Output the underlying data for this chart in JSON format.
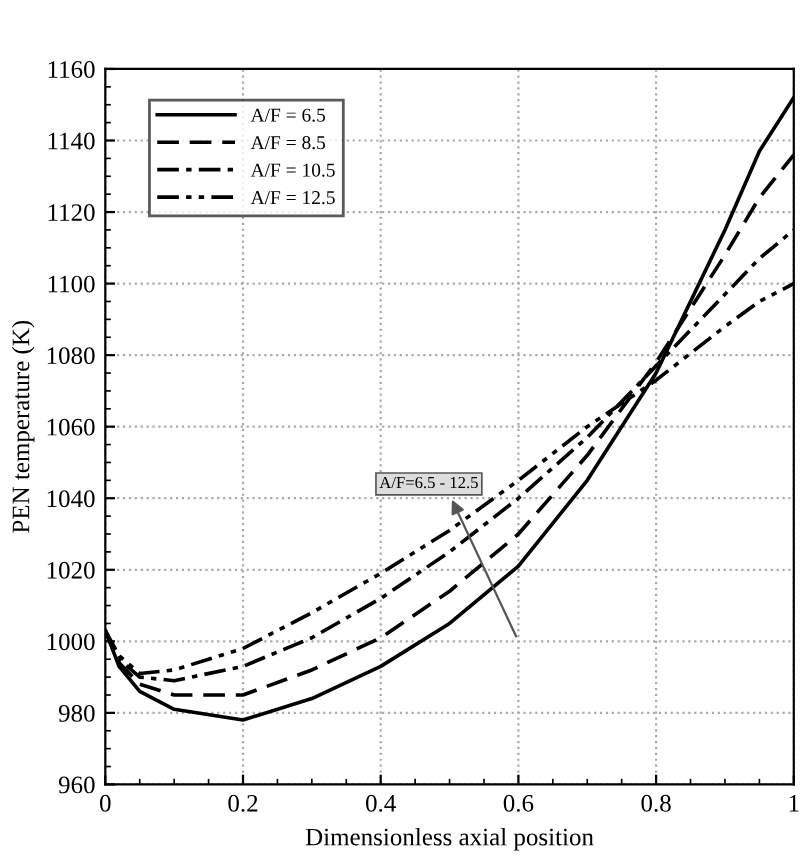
{
  "chart_data": {
    "type": "line",
    "xlabel": "Dimensionless axial position",
    "ylabel": "PEN temperature (K)",
    "x": [
      0,
      0.02,
      0.05,
      0.1,
      0.2,
      0.3,
      0.4,
      0.5,
      0.6,
      0.7,
      0.8,
      0.9,
      0.95,
      1.0
    ],
    "series": [
      {
        "name": "A/F = 6.5",
        "color": "#000000",
        "line_style": "solid",
        "values": [
          1003,
          993,
          986,
          981,
          978,
          984,
          993,
          1005,
          1021,
          1045,
          1075,
          1115,
          1137,
          1152
        ]
      },
      {
        "name": "A/F = 8.5",
        "color": "#000000",
        "line_style": "dashed",
        "values": [
          1003,
          994,
          988,
          985,
          985,
          992,
          1001,
          1014,
          1030,
          1052,
          1078,
          1108,
          1124,
          1136
        ]
      },
      {
        "name": "A/F = 10.5",
        "color": "#000000",
        "line_style": "dashdot",
        "values": [
          1003,
          995,
          990,
          989,
          993,
          1001,
          1012,
          1025,
          1040,
          1057,
          1077,
          1097,
          1107,
          1115
        ]
      },
      {
        "name": "A/F = 12.5",
        "color": "#000000",
        "line_style": "dashdotdot",
        "values": [
          1003,
          996,
          991,
          992,
          998,
          1008,
          1019,
          1031,
          1045,
          1060,
          1073,
          1088,
          1095,
          1100
        ]
      }
    ],
    "annotations": [
      "A/F=6.5 - 12.5"
    ],
    "xlim": [
      0,
      1
    ],
    "ylim": [
      960,
      1160
    ],
    "xticks": [
      0,
      0.2,
      0.4,
      0.6,
      0.8,
      1
    ],
    "yticks": [
      960,
      980,
      1000,
      1020,
      1040,
      1060,
      1080,
      1100,
      1120,
      1140,
      1160
    ],
    "grid": true,
    "legend": "top left"
  }
}
